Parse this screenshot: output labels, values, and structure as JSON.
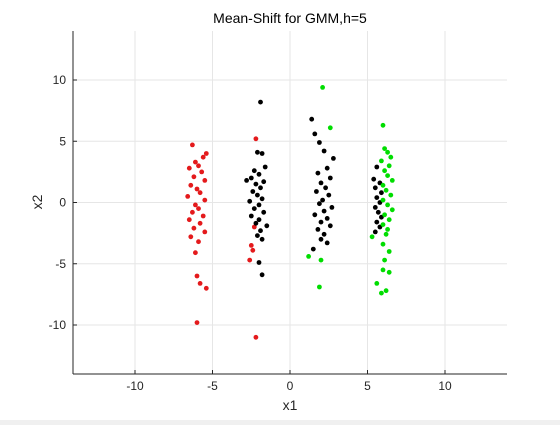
{
  "chart_data": {
    "type": "scatter",
    "title": "Mean-Shift for GMM,h=5",
    "xlabel": "x1",
    "ylabel": "x2",
    "xlim": [
      -14,
      14
    ],
    "ylim": [
      -14,
      14
    ],
    "xticks": [
      -10,
      -5,
      0,
      5,
      10
    ],
    "yticks": [
      -10,
      -5,
      0,
      5,
      10
    ],
    "xtick_labels": [
      "-10",
      "-5",
      "0",
      "5",
      "10"
    ],
    "ytick_labels": [
      "-10",
      "-5",
      "0",
      "5",
      "10"
    ],
    "grid": true,
    "legend": "none",
    "series": [
      {
        "color": "#e41a1c",
        "points": [
          [
            -6.3,
            4.7
          ],
          [
            -5.4,
            4.0
          ],
          [
            -5.6,
            3.7
          ],
          [
            -6.1,
            3.3
          ],
          [
            -5.9,
            3.0
          ],
          [
            -6.5,
            2.8
          ],
          [
            -5.7,
            2.5
          ],
          [
            -6.2,
            2.1
          ],
          [
            -5.5,
            1.8
          ],
          [
            -6.4,
            1.4
          ],
          [
            -6.0,
            1.1
          ],
          [
            -5.8,
            0.8
          ],
          [
            -6.6,
            0.5
          ],
          [
            -5.5,
            0.2
          ],
          [
            -6.1,
            -0.2
          ],
          [
            -5.9,
            -0.5
          ],
          [
            -6.3,
            -0.8
          ],
          [
            -5.6,
            -1.1
          ],
          [
            -6.5,
            -1.4
          ],
          [
            -5.8,
            -1.7
          ],
          [
            -6.2,
            -2.1
          ],
          [
            -5.5,
            -2.4
          ],
          [
            -6.4,
            -2.8
          ],
          [
            -5.9,
            -3.2
          ],
          [
            -6.1,
            -4.1
          ],
          [
            -6.0,
            -6.0
          ],
          [
            -5.8,
            -6.6
          ],
          [
            -5.4,
            -7.0
          ],
          [
            -6.0,
            -9.8
          ],
          [
            -2.2,
            5.2
          ],
          [
            -2.3,
            -2.0
          ],
          [
            -2.5,
            -3.5
          ],
          [
            -2.4,
            -3.9
          ],
          [
            -2.6,
            -4.7
          ],
          [
            -2.2,
            -11.0
          ]
        ]
      },
      {
        "color": "#000000",
        "points": [
          [
            -1.9,
            8.2
          ],
          [
            -2.1,
            4.1
          ],
          [
            -1.8,
            4.0
          ],
          [
            -1.6,
            2.9
          ],
          [
            -2.3,
            2.6
          ],
          [
            -2.0,
            2.3
          ],
          [
            -2.5,
            2.0
          ],
          [
            -1.7,
            1.7
          ],
          [
            -2.2,
            1.5
          ],
          [
            -2.8,
            1.8
          ],
          [
            -1.9,
            1.2
          ],
          [
            -2.4,
            0.9
          ],
          [
            -2.1,
            0.6
          ],
          [
            -1.8,
            0.3
          ],
          [
            -2.6,
            0.1
          ],
          [
            -2.0,
            -0.2
          ],
          [
            -2.3,
            -0.5
          ],
          [
            -1.7,
            -0.8
          ],
          [
            -2.5,
            -1.1
          ],
          [
            -2.0,
            -1.4
          ],
          [
            -2.2,
            -1.7
          ],
          [
            -1.9,
            -2.3
          ],
          [
            -2.1,
            -2.7
          ],
          [
            -1.8,
            -3.0
          ],
          [
            -1.5,
            -1.9
          ],
          [
            -2.0,
            -4.9
          ],
          [
            -1.8,
            -5.9
          ],
          [
            1.4,
            6.8
          ],
          [
            1.6,
            5.6
          ],
          [
            1.9,
            4.9
          ],
          [
            2.2,
            4.2
          ],
          [
            2.8,
            3.6
          ],
          [
            2.4,
            2.8
          ],
          [
            1.8,
            2.4
          ],
          [
            2.6,
            2.0
          ],
          [
            2.0,
            1.6
          ],
          [
            2.3,
            1.2
          ],
          [
            1.7,
            0.9
          ],
          [
            2.5,
            0.6
          ],
          [
            2.1,
            0.2
          ],
          [
            1.9,
            -0.1
          ],
          [
            2.7,
            -0.4
          ],
          [
            2.2,
            -0.7
          ],
          [
            1.6,
            -1.0
          ],
          [
            2.4,
            -1.3
          ],
          [
            2.0,
            -1.6
          ],
          [
            2.6,
            -1.9
          ],
          [
            1.8,
            -2.2
          ],
          [
            2.2,
            -2.6
          ],
          [
            2.0,
            -3.0
          ],
          [
            2.4,
            -3.3
          ],
          [
            1.5,
            -3.8
          ],
          [
            5.6,
            2.9
          ],
          [
            5.4,
            1.9
          ],
          [
            5.8,
            1.6
          ],
          [
            5.5,
            1.2
          ],
          [
            5.9,
            0.8
          ],
          [
            5.6,
            0.4
          ],
          [
            5.8,
            0.0
          ],
          [
            5.5,
            -0.4
          ],
          [
            5.7,
            -0.8
          ],
          [
            5.9,
            -1.2
          ],
          [
            5.6,
            -1.6
          ],
          [
            5.8,
            -2.0
          ],
          [
            5.5,
            -2.4
          ]
        ]
      },
      {
        "color": "#00dd00",
        "points": [
          [
            2.1,
            9.4
          ],
          [
            2.6,
            6.1
          ],
          [
            1.2,
            -4.4
          ],
          [
            2.0,
            -4.7
          ],
          [
            1.9,
            -6.9
          ],
          [
            6.0,
            6.3
          ],
          [
            6.1,
            4.4
          ],
          [
            6.3,
            4.1
          ],
          [
            6.5,
            3.7
          ],
          [
            5.9,
            3.4
          ],
          [
            6.4,
            3.0
          ],
          [
            6.1,
            2.6
          ],
          [
            6.3,
            2.2
          ],
          [
            6.6,
            1.8
          ],
          [
            6.0,
            1.4
          ],
          [
            6.2,
            1.0
          ],
          [
            6.5,
            0.6
          ],
          [
            6.0,
            0.2
          ],
          [
            6.3,
            -0.2
          ],
          [
            6.6,
            -0.6
          ],
          [
            6.1,
            -1.0
          ],
          [
            6.4,
            -1.4
          ],
          [
            6.0,
            -1.8
          ],
          [
            6.3,
            -2.2
          ],
          [
            6.2,
            -2.6
          ],
          [
            5.3,
            -2.8
          ],
          [
            6.0,
            -3.4
          ],
          [
            6.4,
            -4.0
          ],
          [
            6.1,
            -4.7
          ],
          [
            6.0,
            -5.5
          ],
          [
            6.4,
            -5.7
          ],
          [
            5.6,
            -6.6
          ],
          [
            6.2,
            -7.2
          ],
          [
            5.9,
            -7.4
          ]
        ]
      }
    ]
  }
}
